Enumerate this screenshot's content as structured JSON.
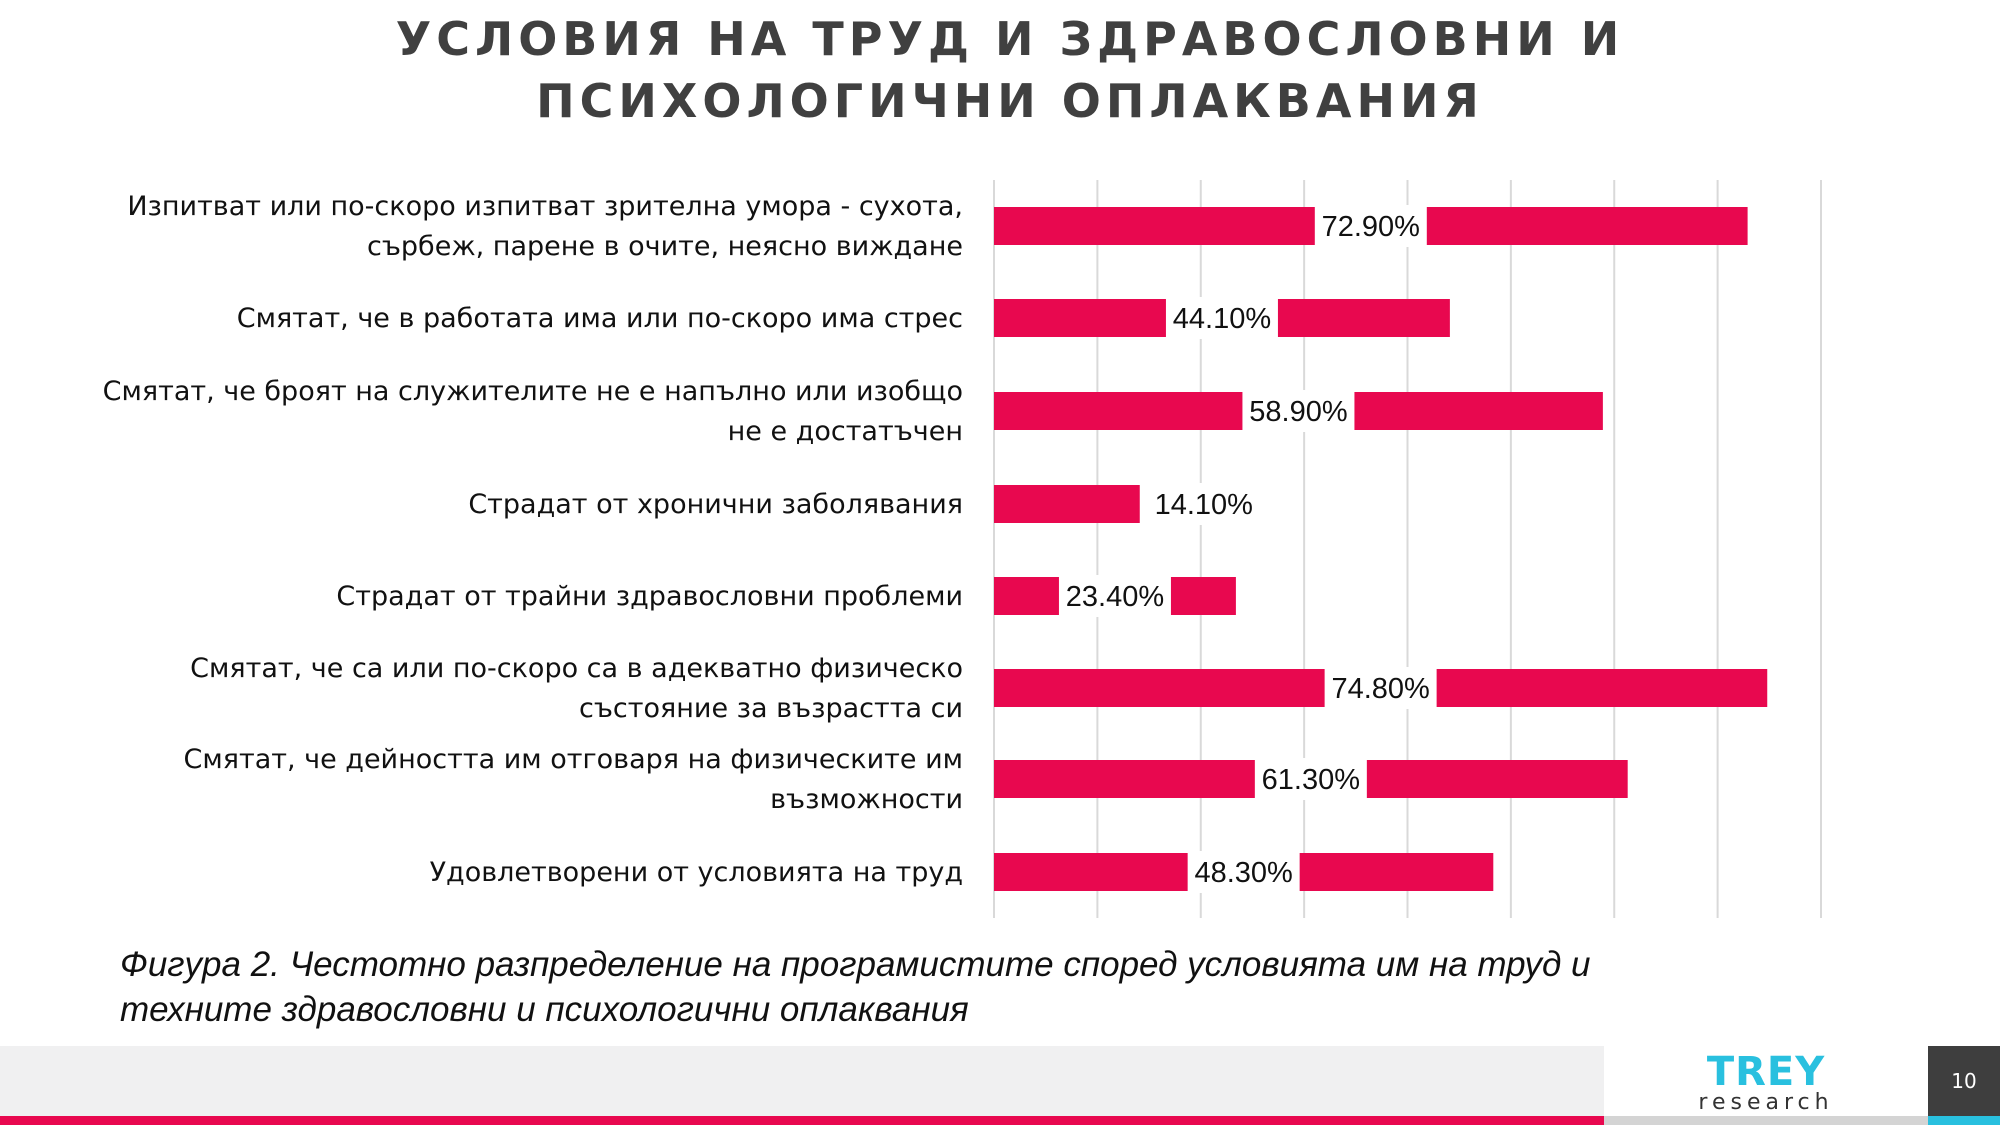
{
  "title": {
    "line1": "УСЛОВИЯ НА ТРУД И ЗДРАВОСЛОВНИ И",
    "line2": "ПСИХОЛОГИЧНИ ОПЛАКВАНИЯ"
  },
  "chart_data": {
    "type": "bar",
    "orientation": "horizontal",
    "categories": [
      [
        "Изпитват или по-скоро изпитват зрителна умора - сухота,",
        "сърбеж, парене в очите, неясно виждане"
      ],
      [
        "Смятат, че в работата има или по-скоро има стрес"
      ],
      [
        "Смятат, че броят на служителите не е напълно или изобщо",
        "не е достатъчен"
      ],
      [
        "Страдат от хронични заболявания"
      ],
      [
        "Страдат от трайни здравословни проблеми"
      ],
      [
        "Смятат, че са или по-скоро са в адекватно физическо",
        "състояние за възрастта си"
      ],
      [
        "Смятат, че дейността им отговаря на физическите им",
        "възможности"
      ],
      [
        "Удовлетворени от условията на труд"
      ]
    ],
    "values": [
      72.9,
      44.1,
      58.9,
      14.1,
      23.4,
      74.8,
      61.3,
      48.3
    ],
    "data_labels": [
      "72.90%",
      "44.10%",
      "58.90%",
      "14.10%",
      "23.40%",
      "74.80%",
      "61.30%",
      "48.30%"
    ],
    "xlim": [
      0,
      80
    ],
    "grid_step": 10,
    "grid": true,
    "x_tick_labels_shown": false,
    "bar_color": "#e8084f",
    "grid_color": "#d9d9d9"
  },
  "caption": {
    "line1": "Фигура 2. Честотно разпределение на програмистите според условията им на труд и",
    "line2": "техните здравословни и психологични оплаквания"
  },
  "footer": {
    "logo_main": "TREY",
    "logo_sub": "research",
    "page_number": "10",
    "accent": "#e8084f",
    "logo_color": "#29c0df"
  }
}
